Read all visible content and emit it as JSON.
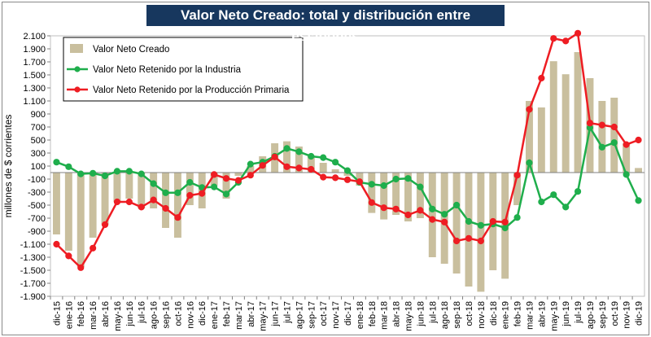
{
  "chart_data": {
    "type": "bar+line",
    "title": "Valor Neto Creado: total y distribución entre eslabones",
    "ylabel": "millones de $ corrientes",
    "ylim": [
      -1900,
      2100
    ],
    "yticks": [
      2100,
      1900,
      1700,
      1500,
      1300,
      1100,
      900,
      700,
      500,
      300,
      100,
      -100,
      -300,
      -500,
      -700,
      -900,
      -1100,
      -1300,
      -1500,
      -1700,
      -1900
    ],
    "ytick_labels": [
      "2.100",
      "1.900",
      "1.700",
      "1.500",
      "1.300",
      "1.100",
      "900",
      "700",
      "500",
      "300",
      "100",
      "-100",
      "-300",
      "-500",
      "-700",
      "-900",
      "-1.100",
      "-1.300",
      "-1.500",
      "-1.700",
      "-1.900"
    ],
    "categories": [
      "dic-15",
      "ene-16",
      "feb-16",
      "mar-16",
      "abr-16",
      "may-16",
      "jun-16",
      "jul-16",
      "ago-16",
      "sep-16",
      "oct-16",
      "nov-16",
      "dic-16",
      "ene-17",
      "feb-17",
      "mar-17",
      "abr-17",
      "may-17",
      "jun-17",
      "jul-17",
      "ago-17",
      "sep-17",
      "oct-17",
      "nov-17",
      "dic-17",
      "ene-18",
      "feb-18",
      "mar-18",
      "abr-18",
      "may-18",
      "jun-18",
      "jul-18",
      "ago-18",
      "sep-18",
      "oct-18",
      "nov-18",
      "dic-18",
      "ene-19",
      "feb-19",
      "mar-19",
      "abr-19",
      "may-19",
      "jun-19",
      "jul-19",
      "ago-19",
      "sep-19",
      "oct-19",
      "nov-19",
      "dic-19"
    ],
    "series": [
      {
        "name": "Valor Neto Creado",
        "kind": "bar",
        "color": "#c9bf9e",
        "values": [
          -950,
          -1200,
          -1450,
          -1000,
          -800,
          -450,
          -400,
          -550,
          -550,
          -850,
          -1000,
          -500,
          -550,
          -200,
          -400,
          -50,
          100,
          250,
          450,
          480,
          400,
          250,
          150,
          50,
          -50,
          -200,
          -620,
          -720,
          -650,
          -750,
          -700,
          -1300,
          -1400,
          -1550,
          -1750,
          -1830,
          -1500,
          -1630,
          -500,
          1100,
          1000,
          1710,
          1510,
          1850,
          1450,
          1100,
          1150,
          450,
          70
        ]
      },
      {
        "name": "Valor Neto Retenido por la Industria",
        "kind": "line",
        "color": "#1fae4c",
        "values": [
          160,
          90,
          -20,
          -10,
          -50,
          20,
          20,
          -20,
          -170,
          -310,
          -310,
          -150,
          -230,
          -220,
          -330,
          -150,
          130,
          160,
          250,
          370,
          320,
          250,
          230,
          160,
          30,
          -150,
          -180,
          -200,
          -100,
          -90,
          -220,
          -560,
          -640,
          -500,
          -750,
          -810,
          -790,
          -850,
          -690,
          150,
          -450,
          -340,
          -530,
          -290,
          690,
          390,
          460,
          -30,
          -430
        ]
      },
      {
        "name": "Valor Neto Retenido por la Producción Primaria",
        "kind": "line",
        "color": "#ee1d23",
        "values": [
          -1100,
          -1280,
          -1460,
          -1160,
          -800,
          -450,
          -450,
          -530,
          -420,
          -550,
          -690,
          -350,
          -320,
          -30,
          -90,
          -120,
          -40,
          110,
          240,
          90,
          70,
          50,
          -70,
          -80,
          -110,
          -140,
          -460,
          -540,
          -560,
          -650,
          -580,
          -720,
          -760,
          -1050,
          -1010,
          -1050,
          -750,
          -760,
          -40,
          970,
          1450,
          2060,
          2020,
          2140,
          760,
          730,
          700,
          430,
          500
        ]
      }
    ],
    "legend_position": "top-left",
    "grid": "horizontal"
  }
}
